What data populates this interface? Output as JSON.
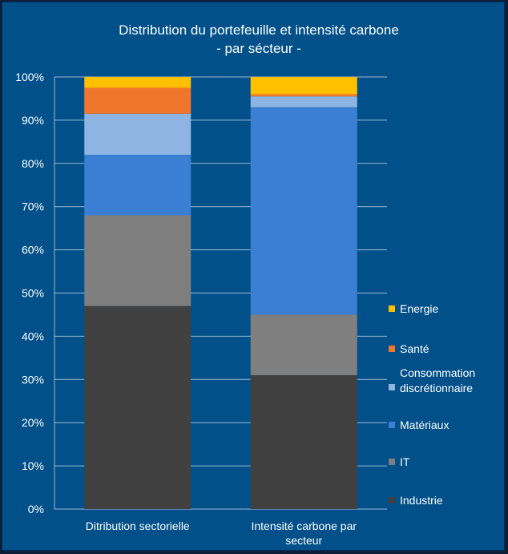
{
  "chart_data": {
    "type": "bar",
    "stacked": true,
    "percent": true,
    "title": "Distribution du portefeuille et intensité carbone",
    "subtitle": "- par sécteur -",
    "categories": [
      "Ditribution sectorielle",
      "Intensité carbone par secteur"
    ],
    "yticks": [
      "0%",
      "10%",
      "20%",
      "30%",
      "40%",
      "50%",
      "60%",
      "70%",
      "80%",
      "90%",
      "100%"
    ],
    "ylim": [
      0,
      100
    ],
    "grid": true,
    "legend_position": "right",
    "series": [
      {
        "name": "Industrie",
        "values": [
          47,
          31
        ],
        "color": "#404040"
      },
      {
        "name": "IT",
        "values": [
          21,
          14
        ],
        "color": "#7f7f7f"
      },
      {
        "name": "Matériaux",
        "values": [
          14,
          48
        ],
        "color": "#3b7fd4"
      },
      {
        "name": "Consommation discrétionnaire",
        "values": [
          9.5,
          2.5
        ],
        "color": "#8db4e2"
      },
      {
        "name": "Santé",
        "values": [
          6,
          0.5
        ],
        "color": "#f0762b"
      },
      {
        "name": "Energie",
        "values": [
          2.5,
          4
        ],
        "color": "#ffc000"
      }
    ]
  }
}
